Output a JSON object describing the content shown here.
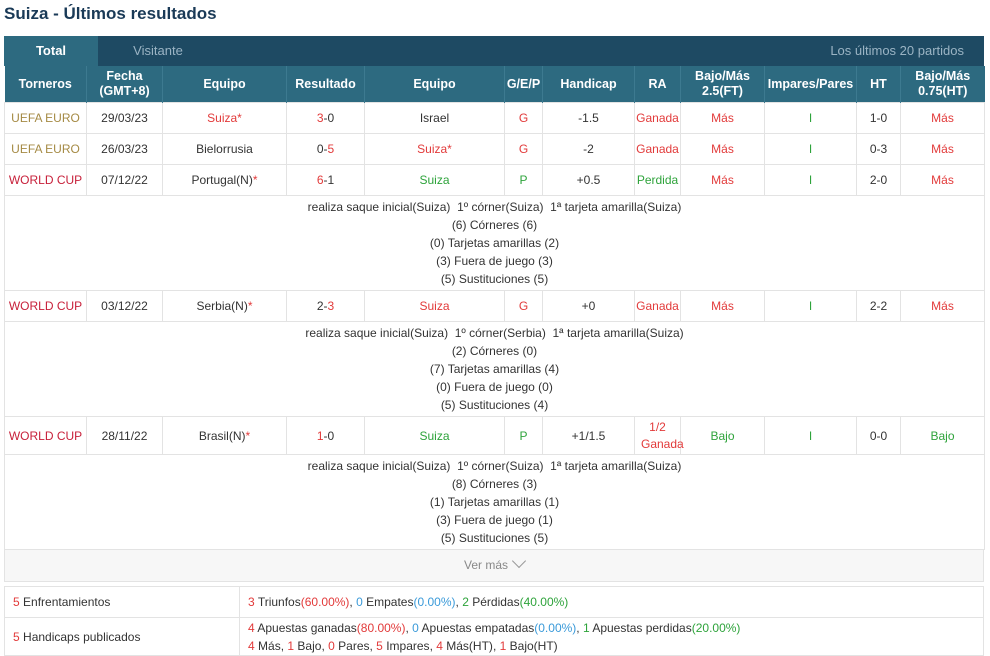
{
  "page_title": "Suiza - Últimos resultados",
  "tabs": {
    "total": "Total",
    "visitante": "Visitante",
    "last": "Los últimos 20 partidos"
  },
  "headers": [
    "Torneros",
    "Fecha (GMT+8)",
    "Equipo",
    "Resultado",
    "Equipo",
    "G/E/P",
    "Handicap",
    "RA",
    "Bajo/Más 2.5(FT)",
    "Impares/Pares",
    "HT",
    "Bajo/Más 0.75(HT)"
  ],
  "matches": [
    {
      "tournament": "UEFA EURO",
      "date": "29/03/23",
      "home": "Suiza",
      "home_star": "*",
      "home_hl": true,
      "score_h": "3",
      "score_sep": "-",
      "score_a": "0",
      "score_hl": "h",
      "away": "Israel",
      "away_star": "",
      "away_hl": false,
      "gep": "G",
      "handicap": "-1.5",
      "ra": "Ganada",
      "ou": "Más",
      "oe": "I",
      "ht": "1-0",
      "ouht": "Más",
      "details": []
    },
    {
      "tournament": "UEFA EURO",
      "date": "26/03/23",
      "home": "Bielorrusia",
      "home_star": "",
      "home_hl": false,
      "score_h": "0",
      "score_sep": "-",
      "score_a": "5",
      "score_hl": "a",
      "away": "Suiza",
      "away_star": "*",
      "away_hl": true,
      "gep": "G",
      "handicap": "-2",
      "ra": "Ganada",
      "ou": "Más",
      "oe": "I",
      "ht": "0-3",
      "ouht": "Más",
      "details": []
    },
    {
      "tournament": "WORLD CUP",
      "date": "07/12/22",
      "home": "Portugal(N)",
      "home_star": "*",
      "home_hl": false,
      "score_h": "6",
      "score_sep": "-",
      "score_a": "1",
      "score_hl": "h",
      "away": "Suiza",
      "away_star": "",
      "away_hl": false,
      "gep": "P",
      "handicap": "+0.5",
      "ra": "Perdida",
      "ou": "Más",
      "oe": "I",
      "ht": "2-0",
      "ouht": "Más",
      "details": [
        "realiza saque inicial(Suiza)  1º córner(Suiza)  1ª tarjeta amarilla(Suiza)",
        "(6) Córneres (6)",
        "(0) Tarjetas amarillas (2)",
        "(3) Fuera de juego (3)",
        "(5) Sustituciones (5)"
      ]
    },
    {
      "tournament": "WORLD CUP",
      "date": "03/12/22",
      "home": "Serbia(N)",
      "home_star": "*",
      "home_hl": false,
      "score_h": "2",
      "score_sep": "-",
      "score_a": "3",
      "score_hl": "a",
      "away": "Suiza",
      "away_star": "",
      "away_hl": true,
      "gep": "G",
      "handicap": "+0",
      "ra": "Ganada",
      "ou": "Más",
      "oe": "I",
      "ht": "2-2",
      "ouht": "Más",
      "details": [
        "realiza saque inicial(Suiza)  1º córner(Serbia)  1ª tarjeta amarilla(Suiza)",
        "(2) Córneres (0)",
        "(7) Tarjetas amarillas (4)",
        "(0) Fuera de juego (0)",
        "(5) Sustituciones (4)"
      ]
    },
    {
      "tournament": "WORLD CUP",
      "date": "28/11/22",
      "home": "Brasil(N)",
      "home_star": "*",
      "home_hl": false,
      "score_h": "1",
      "score_sep": "-",
      "score_a": "0",
      "score_hl": "h",
      "away": "Suiza",
      "away_star": "",
      "away_hl": false,
      "gep": "P",
      "handicap": "+1/1.5",
      "ra": "1/2 Ganada",
      "ou": "Bajo",
      "oe": "I",
      "ht": "0-0",
      "ouht": "Bajo",
      "details": [
        "realiza saque inicial(Suiza)  1º córner(Suiza)  1ª tarjeta amarilla(Suiza)",
        "(8) Córneres (3)",
        "(1) Tarjetas amarillas (1)",
        "(3) Fuera de juego (1)",
        "(5) Sustituciones (5)"
      ]
    }
  ],
  "ver_mas": "Ver más",
  "summary": {
    "enf": {
      "count": "5",
      "label": "Enfrentamientos",
      "w": "3",
      "w_l": "Triunfos",
      "w_p": "(60.00%)",
      "d": "0",
      "d_l": "Empates",
      "d_p": "(0.00%)",
      "l": "2",
      "l_l": "Pérdidas",
      "l_p": "(40.00%)"
    },
    "hcp": {
      "count": "5",
      "label": "Handicaps publicados",
      "w": "4",
      "w_l": "Apuestas ganadas",
      "w_p": "(80.00%)",
      "d": "0",
      "d_l": "Apuestas empatadas",
      "d_p": "(0.00%)",
      "l": "1",
      "l_l": "Apuestas perdidas",
      "l_p": "(20.00%)",
      "line2": [
        {
          "n": "4",
          "t": "Más"
        },
        {
          "n": "1",
          "t": "Bajo"
        },
        {
          "n": "0",
          "t": "Pares"
        },
        {
          "n": "5",
          "t": "Impares"
        },
        {
          "n": "4",
          "t": "Más(HT)"
        },
        {
          "n": "1",
          "t": "Bajo(HT)"
        }
      ]
    }
  },
  "colors": {
    "header": "#2d6a80",
    "tabbar": "#1e4a63",
    "red": "#e23a3a",
    "green": "#2ea33b",
    "blue": "#3a9ad9"
  }
}
